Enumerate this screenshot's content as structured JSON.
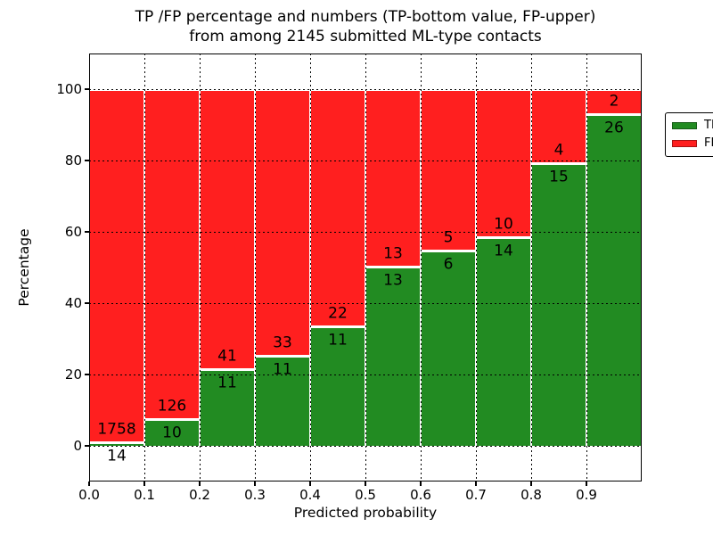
{
  "figure": {
    "title_line1": "TP /FP percentage and numbers (TP-bottom value, FP-upper)",
    "title_line2": "from among 2145 submitted ML-type contacts",
    "background_color": "#ffffff"
  },
  "chart_data": {
    "type": "bar",
    "stacked": true,
    "normalized_to_percent": true,
    "title": "TP /FP percentage and numbers (TP-bottom value, FP-upper) from among 2145 submitted ML-type contacts",
    "xlabel": "Predicted probability",
    "ylabel": "Percentage",
    "xlim": [
      0.0,
      1.0
    ],
    "ylim": [
      -10,
      110
    ],
    "grid": true,
    "grid_style": "dotted",
    "bar_edge_color": "#ffffff",
    "xtick_labels": [
      "0.0",
      "0.1",
      "0.2",
      "0.3",
      "0.4",
      "0.5",
      "0.6",
      "0.7",
      "0.8",
      "0.9"
    ],
    "ytick_values": [
      0,
      20,
      40,
      60,
      80,
      100
    ],
    "categories": [
      "0.0-0.1",
      "0.1-0.2",
      "0.2-0.3",
      "0.3-0.4",
      "0.4-0.5",
      "0.5-0.6",
      "0.6-0.7",
      "0.7-0.8",
      "0.8-0.9",
      "0.9-1.0"
    ],
    "series": [
      {
        "name": "TP",
        "color": "#228b22",
        "counts": [
          14,
          10,
          11,
          11,
          11,
          13,
          6,
          14,
          15,
          26
        ],
        "percent": [
          0.79,
          7.35,
          21.15,
          25.0,
          33.33,
          50.0,
          54.55,
          58.33,
          78.95,
          92.86
        ]
      },
      {
        "name": "FP",
        "color": "#ff1f1f",
        "counts": [
          1758,
          126,
          41,
          33,
          22,
          13,
          5,
          10,
          4,
          2
        ],
        "percent": [
          99.21,
          92.65,
          78.85,
          75.0,
          66.67,
          50.0,
          45.45,
          41.67,
          21.05,
          7.14
        ]
      }
    ],
    "total_contacts": 2145,
    "legend": {
      "position": "upper right",
      "entries": [
        "TP",
        "FP"
      ]
    }
  },
  "layout_note": "counts annotated per bar: TP value below segment boundary, FP value above it"
}
